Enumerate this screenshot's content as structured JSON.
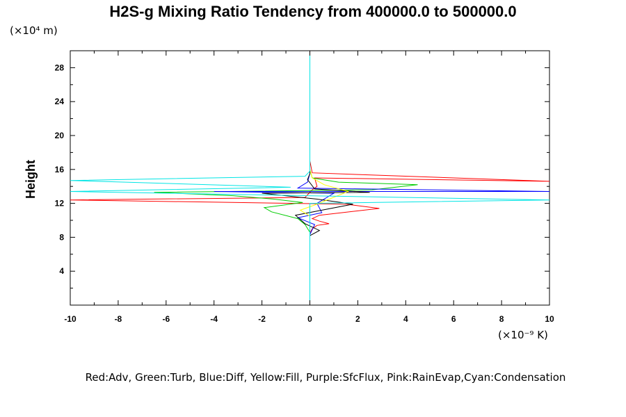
{
  "chart_data": {
    "type": "line",
    "title": "H2S-g Mixing Ratio Tendency from 400000.0 to 500000.0",
    "xlabel": "",
    "ylabel": "Height",
    "x_unit": "(×10⁻⁹ K)",
    "y_unit": "(×10⁴ m)",
    "xlim": [
      -10,
      10
    ],
    "ylim": [
      0,
      30
    ],
    "xticks": [
      -10,
      -8,
      -6,
      -4,
      -2,
      0,
      2,
      4,
      6,
      8,
      10
    ],
    "yticks": [
      4,
      8,
      12,
      16,
      20,
      24,
      28
    ],
    "grid": false,
    "legend_text": "Red:Adv, Green:Turb, Blue:Diff, Yellow:Fill, Purple:SfcFlux, Pink:RainEvap,Cyan:Condensation",
    "series": [
      {
        "color": "#ff0000",
        "points": [
          [
            0,
            0.1
          ],
          [
            0,
            8.5
          ],
          [
            0.1,
            9.0
          ],
          [
            0.3,
            9.4
          ],
          [
            0.8,
            9.6
          ],
          [
            0.4,
            9.9
          ],
          [
            0.1,
            10.2
          ],
          [
            0.4,
            10.6
          ],
          [
            2.9,
            11.4
          ],
          [
            1.5,
            11.9
          ],
          [
            -10,
            12.4
          ],
          [
            -0.2,
            12.7
          ],
          [
            0,
            13.3
          ],
          [
            0.1,
            13.6
          ],
          [
            0.3,
            14.0
          ],
          [
            0.2,
            15.0
          ],
          [
            10,
            14.6
          ],
          [
            0.1,
            15.6
          ],
          [
            0,
            17
          ],
          [
            0,
            30
          ]
        ]
      },
      {
        "color": "#00cc00",
        "points": [
          [
            0,
            0.1
          ],
          [
            0,
            8.6
          ],
          [
            -0.2,
            9.5
          ],
          [
            -0.5,
            10.2
          ],
          [
            -1.6,
            11.0
          ],
          [
            -1.9,
            11.5
          ],
          [
            -0.3,
            12.1
          ],
          [
            -1.5,
            12.5
          ],
          [
            -3.2,
            12.9
          ],
          [
            -6.5,
            13.3
          ],
          [
            2.6,
            13.6
          ],
          [
            4.5,
            14.2
          ],
          [
            1.2,
            14.5
          ],
          [
            0.1,
            15.0
          ],
          [
            0,
            16
          ],
          [
            0,
            30
          ]
        ]
      },
      {
        "color": "#0000ff",
        "points": [
          [
            0,
            0.1
          ],
          [
            0,
            8.3
          ],
          [
            0.2,
            9.5
          ],
          [
            -0.5,
            10.3
          ],
          [
            0.5,
            10.9
          ],
          [
            0.3,
            12.0
          ],
          [
            1.0,
            13.2
          ],
          [
            -4.0,
            13.4
          ],
          [
            10,
            13.4
          ],
          [
            -0.5,
            13.8
          ],
          [
            -0.1,
            14.5
          ],
          [
            0,
            15.5
          ],
          [
            0,
            30
          ]
        ]
      },
      {
        "color": "#000000",
        "points": [
          [
            0,
            0.1
          ],
          [
            0,
            8.2
          ],
          [
            0.4,
            8.8
          ],
          [
            -0.2,
            9.6
          ],
          [
            -0.6,
            10.6
          ],
          [
            1.8,
            11.9
          ],
          [
            0.3,
            12.5
          ],
          [
            -2.0,
            13.2
          ],
          [
            2.5,
            13.3
          ],
          [
            0.2,
            13.7
          ],
          [
            -0.1,
            14.8
          ],
          [
            0,
            15.5
          ],
          [
            0,
            30
          ]
        ]
      },
      {
        "color": "#ffff00",
        "points": [
          [
            0,
            0.1
          ],
          [
            0,
            10.5
          ],
          [
            -0.4,
            11.2
          ],
          [
            0.2,
            11.8
          ],
          [
            1.6,
            13.4
          ],
          [
            0.6,
            14.2
          ],
          [
            0.1,
            15.0
          ],
          [
            0,
            16
          ],
          [
            0,
            30
          ]
        ]
      },
      {
        "color": "#00e5e5",
        "points": [
          [
            0,
            0.1
          ],
          [
            0,
            12.0
          ],
          [
            10,
            12.4
          ],
          [
            -0.1,
            12.9
          ],
          [
            -10,
            13.4
          ],
          [
            -0.8,
            13.9
          ],
          [
            -10,
            14.7
          ],
          [
            -0.2,
            15.2
          ],
          [
            0,
            15.8
          ],
          [
            0,
            30
          ]
        ]
      }
    ]
  }
}
